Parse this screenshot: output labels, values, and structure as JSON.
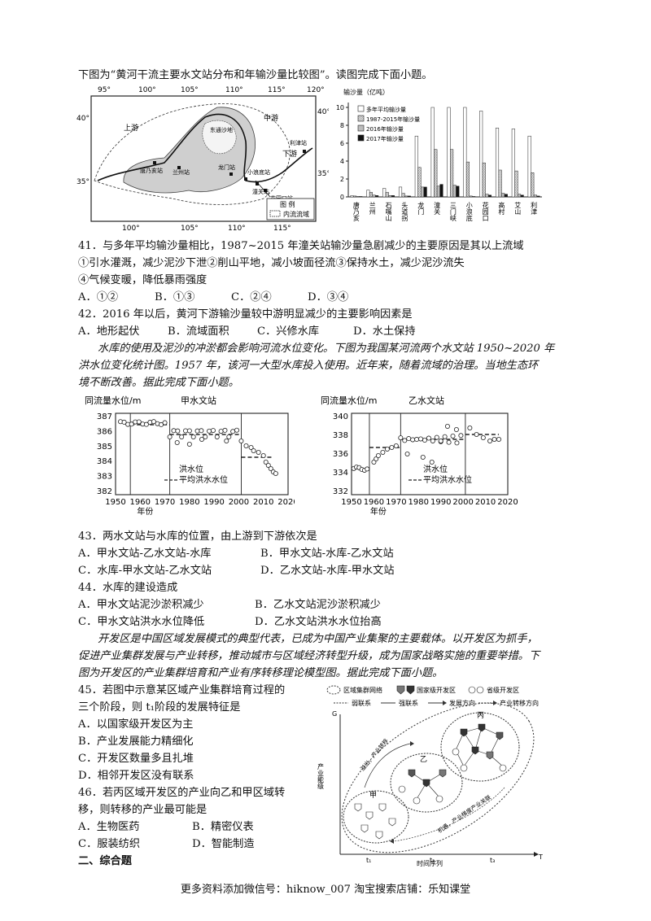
{
  "intro1": "下图为“黄河干流主要水文站分布和年输沙量比较图”。读图完成下面小题。",
  "map": {
    "top_lon": [
      "95°",
      "100°",
      "105°",
      "110°",
      "115°",
      "120°"
    ],
    "bottom_lon": [
      "100°",
      "105°",
      "110°",
      "115°"
    ],
    "lat_left": [
      "40°",
      "35°"
    ],
    "lat_right": [
      "40°",
      "35°"
    ],
    "labels": [
      "上游",
      "中游",
      "下游",
      "东通沙地",
      "唐乃亥站",
      "兰州站",
      "龙门站",
      "小浪底站",
      "潼关站",
      "花园口站",
      "利津站"
    ],
    "legend_title": "图 例",
    "legend_item": "内流流域"
  },
  "chart_data": {
    "type": "bar",
    "ylabel": "输沙量（亿吨）",
    "ylim": [
      0,
      10
    ],
    "yticks": [
      0,
      2,
      4,
      6,
      8,
      10
    ],
    "categories": [
      "唐乃亥",
      "兰州",
      "石嘴山",
      "头道拐",
      "龙门",
      "潼关",
      "三门峡",
      "小浪底",
      "花园口",
      "高村",
      "艾山",
      "利津"
    ],
    "series": [
      {
        "name": "多年平均输沙量",
        "values": [
          0.13,
          0.75,
          0.95,
          1.1,
          6.8,
          10,
          10,
          10,
          9.6,
          7.7,
          7.6,
          6.8
        ]
      },
      {
        "name": "1987-2015年输沙量",
        "values": [
          0.1,
          0.5,
          0.5,
          0.4,
          3.3,
          5.3,
          5.3,
          3.9,
          3.8,
          3.0,
          2.9,
          2.7
        ]
      },
      {
        "name": "2016年输沙量",
        "values": [
          0.05,
          0.2,
          0.15,
          0.1,
          1.1,
          1.2,
          1.3,
          0.1,
          0.3,
          0.4,
          0.3,
          0.2
        ]
      },
      {
        "name": "2017年输沙量",
        "values": [
          0.05,
          0.15,
          0.15,
          0.1,
          1.1,
          1.4,
          1.2,
          0.05,
          0.2,
          0.3,
          0.2,
          0.1
        ]
      }
    ]
  },
  "q41": {
    "stem": "41．与多年平均输沙量相比，1987~2015 年潼关站输沙量急剧减少的主要原因是其以上流域",
    "line2": "①引水灌溉，减少泥沙下泄②削山平地，减小坡面径流③保持水土，减少泥沙流失",
    "line3": "④气候变暖，降低暴雨强度",
    "A": "A．①②",
    "B": "B．①③",
    "C": "C．②④",
    "D": "D．③④"
  },
  "q42": {
    "stem": "42．2016 年以后，黄河下游输沙量较中游明显减少的主要影响因素是",
    "A": "A．地形起伏",
    "B": "B．流域面积",
    "C": "C．兴修水库",
    "D": "D．水土保持"
  },
  "intro2_l1": "水库的使用及泥沙的冲淤都会影响河流水位变化。下图为我国某河流两个水文站 1950~2020 年",
  "intro2_l2": "洪水位变化统计图。1957 年，该河一大型水库投入使用。近年来，随着流域的治理。当地生态环",
  "intro2_l3": "境不断改善。据此完成下面小题。",
  "charts2": [
    {
      "ylabel": "同流量水位/m",
      "title": "甲水文站",
      "yticks": [
        "387",
        "386",
        "385",
        "384",
        "383",
        "382"
      ],
      "xticks": [
        "1950",
        "1960",
        "1970",
        "1980",
        "1990",
        "2000",
        "2010",
        "2020"
      ],
      "xlabel": "年份",
      "legend1": "洪水位",
      "legend2": "平均洪水水位"
    },
    {
      "ylabel": "同流量水位/m",
      "title": "乙水文站",
      "yticks": [
        "340",
        "338",
        "336",
        "334",
        "332"
      ],
      "xticks": [
        "1950",
        "1960",
        "1970",
        "1980",
        "1990",
        "2000",
        "2010",
        "2020"
      ],
      "xlabel": "年份",
      "legend1": "洪水位",
      "legend2": "平均洪水水位"
    }
  ],
  "q43": {
    "stem": "43．两水文站与水库的位置，由上游到下游依次是",
    "A": "A．甲水文站-乙水文站-水库",
    "B": "B．甲水文站-水库-乙水文站",
    "C": "C．水库-甲水文站-乙水文站",
    "D": "D．乙水文站-水库-甲水文站"
  },
  "q44": {
    "stem": "44．水库的建设造成",
    "A": "A．甲水文站泥沙淤积减少",
    "B": "B．乙水文站泥沙淤积减少",
    "C": "C．甲水文站洪水水位降低",
    "D": "D．乙水文站洪水水位抬高"
  },
  "intro3_l1": "开发区是中国区域发展模式的典型代表，已成为中国产业集聚的主要载体。以开发区为抓手，",
  "intro3_l2": "促进产业集群发展与产业转移，推动城市与区域经济转型升级，成为国家战略实施的重要举措。下",
  "intro3_l3": "图为开发区的产业集群培育和产业有序转移理论模型图。据此完成下面小题。",
  "q45": {
    "stem1": "45．若图中示意某区域产业集群培育过程的",
    "stem2": "三个阶段，则 t₁阶段的发展特征是",
    "A": "A．以国家级开发区为主",
    "B": "B．产业发展能力精细化",
    "C": "C．开发区数量多且扎堆",
    "D": "D．相邻开发区没有联系"
  },
  "q46": {
    "stem1": "46．若丙区域开发区的产业向乙和甲区域转",
    "stem2": "移，则转移的产业最可能是",
    "A": "A．生物医药",
    "B": "B．精密仪表",
    "C": "C．服装纺织",
    "D": "D．智能制造"
  },
  "diagram": {
    "legend1": "区域集群网络",
    "legend2": "国家级开发区",
    "legend3": "省级开发区",
    "legend4": "弱联系",
    "legend5": "强联系",
    "legend6": "发展方向",
    "legend7": "产业转移方向",
    "yaxis": "产业能级",
    "xaxis": "时间序列",
    "labels": [
      "甲",
      "乙",
      "丙",
      "溢出，产业转移",
      "机遇，产业梯度产业关联",
      "G",
      "T",
      "t₁",
      "t₂",
      "t₃"
    ]
  },
  "section2": "二、综合题",
  "footer": "更多资料添加微信号：hiknow_007   淘宝搜索店铺：乐知课堂"
}
